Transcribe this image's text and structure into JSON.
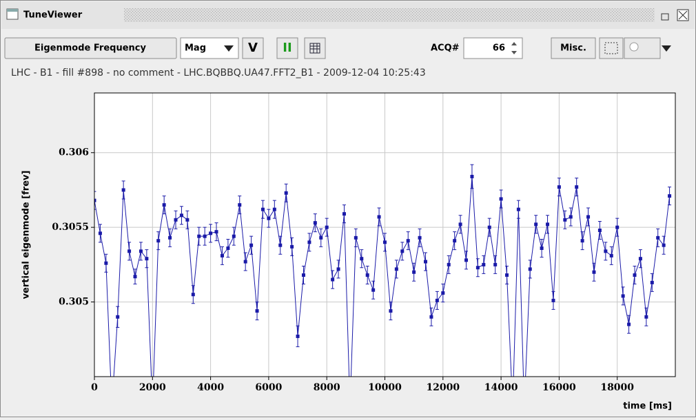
{
  "window": {
    "title": "TuneViewer",
    "toolbar": {
      "mode": "Eigenmode Frequency",
      "scale": "Mag",
      "plane": "V",
      "pause": "II",
      "acq_label": "ACQ#",
      "acq_value": "66",
      "misc": "Misc."
    }
  },
  "chart_data": {
    "type": "errorbar-line",
    "subtitle": "LHC - B1 - fill #898 - no comment - LHC.BQBBQ.UA47.FFT2_B1 - 2009-12-04 10:25:43",
    "xlabel": "time [ms]",
    "ylabel": "vertical eigenmode [frev]",
    "xlim": [
      0,
      20000
    ],
    "xticks": [
      0,
      2000,
      4000,
      6000,
      8000,
      10000,
      12000,
      14000,
      16000,
      18000
    ],
    "ylim": [
      0.3045,
      0.3064
    ],
    "yticks": [
      0.305,
      0.3055,
      0.306
    ],
    "grid": true,
    "series": [
      {
        "name": "vertical eigenmode",
        "color": "#1a1aa8",
        "x": [
          0,
          200,
          400,
          600,
          800,
          1000,
          1200,
          1400,
          1600,
          1800,
          2000,
          2200,
          2400,
          2600,
          2800,
          3000,
          3200,
          3400,
          3600,
          3800,
          4000,
          4200,
          4400,
          4600,
          4800,
          5000,
          5200,
          5400,
          5600,
          5800,
          6000,
          6200,
          6400,
          6600,
          6800,
          7000,
          7200,
          7400,
          7600,
          7800,
          8000,
          8200,
          8400,
          8600,
          8800,
          9000,
          9200,
          9400,
          9600,
          9800,
          10000,
          10200,
          10400,
          10600,
          10800,
          11000,
          11200,
          11400,
          11600,
          11800,
          12000,
          12200,
          12400,
          12600,
          12800,
          13000,
          13200,
          13400,
          13600,
          13800,
          14000,
          14200,
          14400,
          14600,
          14800,
          15000,
          15200,
          15400,
          15600,
          15800,
          16000,
          16200,
          16400,
          16600,
          16800,
          17000,
          17200,
          17400,
          17600,
          17800,
          18000,
          18200,
          18400,
          18600,
          18800,
          19000,
          19200,
          19400,
          19600,
          19800
        ],
        "values": [
          0.30568,
          0.30546,
          0.30526,
          0.3043,
          0.3049,
          0.30575,
          0.30534,
          0.30517,
          0.30534,
          0.30529,
          0.3043,
          0.30541,
          0.30565,
          0.30543,
          0.30555,
          0.30558,
          0.30555,
          0.30505,
          0.30544,
          0.30544,
          0.30546,
          0.30547,
          0.30531,
          0.30536,
          0.30544,
          0.30565,
          0.30527,
          0.30538,
          0.30494,
          0.30562,
          0.30556,
          0.30562,
          0.30538,
          0.30573,
          0.30537,
          0.30477,
          0.30518,
          0.3054,
          0.30553,
          0.30543,
          0.3055,
          0.30515,
          0.30522,
          0.30559,
          0.3043,
          0.30543,
          0.30529,
          0.30518,
          0.30508,
          0.30557,
          0.3054,
          0.30494,
          0.30522,
          0.30534,
          0.30541,
          0.3052,
          0.30543,
          0.30527,
          0.3049,
          0.30501,
          0.30506,
          0.30525,
          0.30541,
          0.30552,
          0.30528,
          0.30584,
          0.30523,
          0.30525,
          0.3055,
          0.30525,
          0.30569,
          0.30518,
          0.3043,
          0.30562,
          0.3043,
          0.30522,
          0.30552,
          0.30536,
          0.30552,
          0.30501,
          0.30577,
          0.30555,
          0.30557,
          0.30577,
          0.30541,
          0.30557,
          0.3052,
          0.30548,
          0.30534,
          0.30531,
          0.3055,
          0.30504,
          0.30485,
          0.30518,
          0.30529,
          0.3049,
          0.30513,
          0.30543,
          0.30538,
          0.30571
        ],
        "errors": [
          6e-05,
          6e-05,
          6e-05,
          6e-05,
          7e-05,
          6e-05,
          6e-05,
          5e-05,
          6e-05,
          6e-05,
          6e-05,
          6e-05,
          6e-05,
          6e-05,
          6e-05,
          6e-05,
          6e-05,
          6e-05,
          6e-05,
          6e-05,
          6e-05,
          6e-05,
          6e-05,
          6e-05,
          6e-05,
          6e-05,
          6e-05,
          6e-05,
          6e-05,
          6e-05,
          6e-05,
          6e-05,
          6e-05,
          6e-05,
          6e-05,
          7e-05,
          6e-05,
          6e-05,
          6e-05,
          6e-05,
          6e-05,
          6e-05,
          6e-05,
          6e-05,
          6e-05,
          6e-05,
          6e-05,
          6e-05,
          6e-05,
          6e-05,
          6e-05,
          6e-05,
          6e-05,
          6e-05,
          6e-05,
          6e-05,
          6e-05,
          6e-05,
          6e-05,
          6e-05,
          6e-05,
          6e-05,
          6e-05,
          6e-05,
          6e-05,
          8e-05,
          6e-05,
          6e-05,
          6e-05,
          6e-05,
          6e-05,
          6e-05,
          6e-05,
          6e-05,
          6e-05,
          6e-05,
          6e-05,
          6e-05,
          6e-05,
          6e-05,
          6e-05,
          6e-05,
          6e-05,
          6e-05,
          6e-05,
          6e-05,
          6e-05,
          6e-05,
          6e-05,
          6e-05,
          6e-05,
          6e-05,
          6e-05,
          6e-05,
          6e-05,
          6e-05,
          6e-05,
          6e-05,
          6e-05,
          6e-05
        ]
      }
    ]
  }
}
